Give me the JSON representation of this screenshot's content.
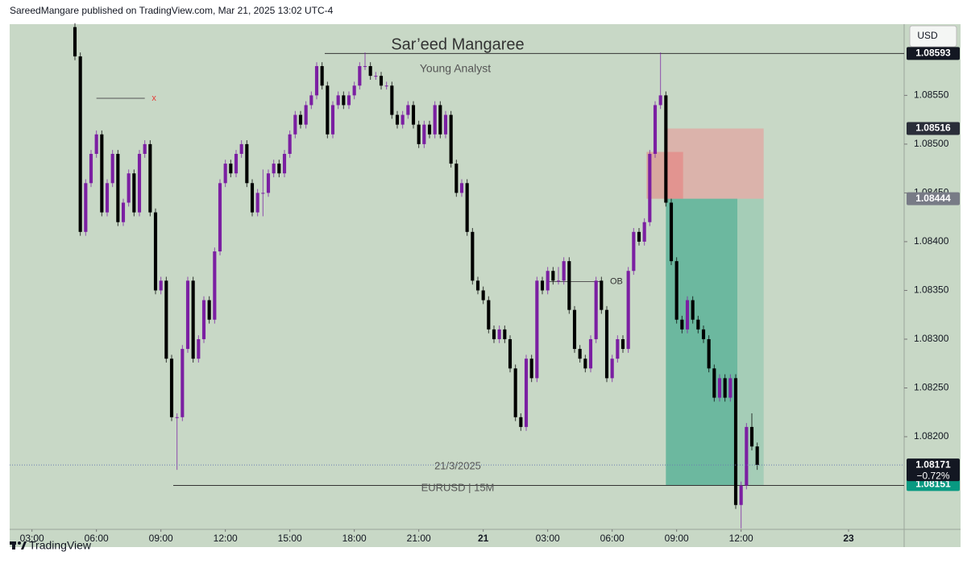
{
  "chart_data": {
    "type": "candlestick",
    "header": "SareedMangare published on TradingView.com, Mar 21, 2025 13:02 UTC-4",
    "currency": "USD",
    "watermark_title": "Sar’eed Mangaree",
    "watermark_subtitle": "Young Analyst",
    "captions": [
      "21/3/2025",
      "EURUSD | 15M"
    ],
    "brand": "TradingView",
    "up_color": "#7b1fa2",
    "down_color": "#000000",
    "ylim": [
      1.08105,
      1.08623
    ],
    "yticks": [
      {
        "value": 1.0855,
        "label": "1.08550"
      },
      {
        "value": 1.085,
        "label": "1.08500"
      },
      {
        "value": 1.0845,
        "label": "1.08450"
      },
      {
        "value": 1.084,
        "label": "1.08400"
      },
      {
        "value": 1.0835,
        "label": "1.08350"
      },
      {
        "value": 1.083,
        "label": "1.08300"
      },
      {
        "value": 1.0825,
        "label": "1.08250"
      },
      {
        "value": 1.082,
        "label": "1.08200"
      }
    ],
    "xlim": [
      -12.15,
      154.35
    ],
    "xticks": [
      {
        "value": -8,
        "label": "03:00"
      },
      {
        "value": 4,
        "label": "06:00"
      },
      {
        "value": 16,
        "label": "09:00"
      },
      {
        "value": 28,
        "label": "12:00"
      },
      {
        "value": 40,
        "label": "15:00"
      },
      {
        "value": 52,
        "label": "18:00"
      },
      {
        "value": 64,
        "label": "21:00"
      },
      {
        "value": 76,
        "label": "21"
      },
      {
        "value": 88,
        "label": "03:00"
      },
      {
        "value": 100,
        "label": "06:00"
      },
      {
        "value": 112,
        "label": "09:00"
      },
      {
        "value": 124,
        "label": "12:00"
      },
      {
        "value": 144,
        "label": "23"
      }
    ],
    "candles": [
      [
        1.0862,
        1.08624,
        1.08586,
        1.0859
      ],
      [
        1.0859,
        1.08594,
        1.08406,
        1.0841
      ],
      [
        1.0841,
        1.08464,
        1.08406,
        1.0846
      ],
      [
        1.0846,
        1.08494,
        1.08456,
        1.0849
      ],
      [
        1.0849,
        1.08514,
        1.08486,
        1.0851
      ],
      [
        1.0851,
        1.08514,
        1.08426,
        1.0843
      ],
      [
        1.0843,
        1.08464,
        1.08426,
        1.0846
      ],
      [
        1.0846,
        1.08494,
        1.08456,
        1.0849
      ],
      [
        1.0849,
        1.08494,
        1.08416,
        1.0842
      ],
      [
        1.0842,
        1.08444,
        1.08416,
        1.0844
      ],
      [
        1.0844,
        1.08474,
        1.08436,
        1.0847
      ],
      [
        1.0847,
        1.08474,
        1.08426,
        1.0843
      ],
      [
        1.0843,
        1.08494,
        1.08426,
        1.0849
      ],
      [
        1.0849,
        1.08504,
        1.08486,
        1.085
      ],
      [
        1.085,
        1.08504,
        1.08426,
        1.0843
      ],
      [
        1.0843,
        1.08434,
        1.08346,
        1.0835
      ],
      [
        1.0835,
        1.08364,
        1.08346,
        1.0836
      ],
      [
        1.0836,
        1.08364,
        1.08276,
        1.0828
      ],
      [
        1.0828,
        1.08284,
        1.08216,
        1.0822
      ],
      [
        1.0822,
        1.08224,
        1.08166,
        1.0822
      ],
      [
        1.0822,
        1.08294,
        1.08216,
        1.0829
      ],
      [
        1.0829,
        1.08364,
        1.08286,
        1.0836
      ],
      [
        1.0836,
        1.08364,
        1.08276,
        1.0828
      ],
      [
        1.0828,
        1.08304,
        1.08276,
        1.083
      ],
      [
        1.083,
        1.08344,
        1.08296,
        1.0834
      ],
      [
        1.0834,
        1.08344,
        1.08316,
        1.0832
      ],
      [
        1.0832,
        1.08394,
        1.08316,
        1.0839
      ],
      [
        1.0839,
        1.08464,
        1.08386,
        1.0846
      ],
      [
        1.0846,
        1.08484,
        1.08456,
        1.0848
      ],
      [
        1.0848,
        1.08484,
        1.08466,
        1.0847
      ],
      [
        1.0847,
        1.08494,
        1.08466,
        1.0849
      ],
      [
        1.0849,
        1.08504,
        1.08486,
        1.085
      ],
      [
        1.085,
        1.08504,
        1.08456,
        1.0846
      ],
      [
        1.0846,
        1.08464,
        1.08426,
        1.0843
      ],
      [
        1.0843,
        1.08454,
        1.08426,
        1.0845
      ],
      [
        1.0845,
        1.08474,
        1.08426,
        1.0845
      ],
      [
        1.0845,
        1.08474,
        1.08446,
        1.0847
      ],
      [
        1.0847,
        1.08484,
        1.08466,
        1.0848
      ],
      [
        1.0848,
        1.08484,
        1.08466,
        1.0847
      ],
      [
        1.0847,
        1.08494,
        1.08466,
        1.0849
      ],
      [
        1.0849,
        1.08514,
        1.08486,
        1.0851
      ],
      [
        1.0851,
        1.08534,
        1.08506,
        1.0853
      ],
      [
        1.0853,
        1.08534,
        1.08516,
        1.0852
      ],
      [
        1.0852,
        1.08544,
        1.08516,
        1.0854
      ],
      [
        1.0854,
        1.08554,
        1.08536,
        1.0855
      ],
      [
        1.0855,
        1.08584,
        1.08546,
        1.0858
      ],
      [
        1.0858,
        1.08584,
        1.08556,
        1.0856
      ],
      [
        1.0856,
        1.08564,
        1.08506,
        1.0851
      ],
      [
        1.0851,
        1.08544,
        1.08506,
        1.0854
      ],
      [
        1.0854,
        1.08554,
        1.08536,
        1.0855
      ],
      [
        1.0855,
        1.08554,
        1.08536,
        1.0854
      ],
      [
        1.0854,
        1.08554,
        1.08536,
        1.0855
      ],
      [
        1.0855,
        1.08564,
        1.08546,
        1.0856
      ],
      [
        1.0856,
        1.08584,
        1.08556,
        1.0858
      ],
      [
        1.0858,
        1.08594,
        1.08576,
        1.0858
      ],
      [
        1.0858,
        1.08584,
        1.08566,
        1.0857
      ],
      [
        1.0857,
        1.08574,
        1.08566,
        1.0857
      ],
      [
        1.0857,
        1.08574,
        1.08556,
        1.0856
      ],
      [
        1.0856,
        1.08564,
        1.08556,
        1.0856
      ],
      [
        1.0856,
        1.08564,
        1.08526,
        1.0853
      ],
      [
        1.0853,
        1.08534,
        1.08516,
        1.0852
      ],
      [
        1.0852,
        1.08534,
        1.08516,
        1.0853
      ],
      [
        1.0853,
        1.08544,
        1.08526,
        1.0854
      ],
      [
        1.0854,
        1.08544,
        1.08516,
        1.0852
      ],
      [
        1.0852,
        1.08524,
        1.08496,
        1.085
      ],
      [
        1.085,
        1.08524,
        1.08496,
        1.0852
      ],
      [
        1.0852,
        1.08524,
        1.08506,
        1.0851
      ],
      [
        1.0851,
        1.08544,
        1.08506,
        1.0854
      ],
      [
        1.0854,
        1.08544,
        1.08506,
        1.0851
      ],
      [
        1.0851,
        1.08534,
        1.08506,
        1.0853
      ],
      [
        1.0853,
        1.08534,
        1.08476,
        1.0848
      ],
      [
        1.0848,
        1.08484,
        1.08446,
        1.0845
      ],
      [
        1.0845,
        1.08464,
        1.08446,
        1.0846
      ],
      [
        1.0846,
        1.08464,
        1.08406,
        1.0841
      ],
      [
        1.0841,
        1.08414,
        1.08356,
        1.0836
      ],
      [
        1.0836,
        1.08364,
        1.08346,
        1.0835
      ],
      [
        1.0835,
        1.08354,
        1.08336,
        1.0834
      ],
      [
        1.0834,
        1.08344,
        1.08306,
        1.0831
      ],
      [
        1.0831,
        1.08314,
        1.08296,
        1.083
      ],
      [
        1.083,
        1.08314,
        1.08296,
        1.0831
      ],
      [
        1.0831,
        1.08314,
        1.08296,
        1.083
      ],
      [
        1.083,
        1.08304,
        1.08266,
        1.0827
      ],
      [
        1.0827,
        1.08274,
        1.08216,
        1.0822
      ],
      [
        1.0822,
        1.08224,
        1.08206,
        1.0821
      ],
      [
        1.0821,
        1.08284,
        1.08206,
        1.0828
      ],
      [
        1.0828,
        1.08284,
        1.08256,
        1.0826
      ],
      [
        1.0826,
        1.08364,
        1.08256,
        1.0836
      ],
      [
        1.0836,
        1.08364,
        1.08346,
        1.0835
      ],
      [
        1.0835,
        1.08374,
        1.08346,
        1.0837
      ],
      [
        1.0837,
        1.08374,
        1.08356,
        1.0836
      ],
      [
        1.0836,
        1.08374,
        1.08356,
        1.0836
      ],
      [
        1.0836,
        1.08384,
        1.08356,
        1.0838
      ],
      [
        1.0838,
        1.08384,
        1.08326,
        1.0833
      ],
      [
        1.0833,
        1.08334,
        1.08286,
        1.0829
      ],
      [
        1.0829,
        1.08294,
        1.08276,
        1.0828
      ],
      [
        1.0828,
        1.08284,
        1.08266,
        1.0827
      ],
      [
        1.0827,
        1.08304,
        1.08266,
        1.083
      ],
      [
        1.083,
        1.08364,
        1.08296,
        1.0836
      ],
      [
        1.0836,
        1.08364,
        1.08326,
        1.0833
      ],
      [
        1.0833,
        1.08334,
        1.08256,
        1.0826
      ],
      [
        1.0826,
        1.08284,
        1.08256,
        1.0828
      ],
      [
        1.0828,
        1.08304,
        1.08276,
        1.083
      ],
      [
        1.083,
        1.08304,
        1.08286,
        1.0829
      ],
      [
        1.0829,
        1.08374,
        1.08286,
        1.0837
      ],
      [
        1.0837,
        1.08414,
        1.08366,
        1.0841
      ],
      [
        1.0841,
        1.08414,
        1.08396,
        1.084
      ],
      [
        1.084,
        1.08424,
        1.08396,
        1.0842
      ],
      [
        1.0842,
        1.08494,
        1.08416,
        1.0849
      ],
      [
        1.0849,
        1.08544,
        1.08486,
        1.0854
      ],
      [
        1.0854,
        1.08594,
        1.08536,
        1.0855
      ],
      [
        1.0855,
        1.08554,
        1.08436,
        1.0844
      ],
      [
        1.0844,
        1.08444,
        1.08376,
        1.0838
      ],
      [
        1.0838,
        1.08384,
        1.08316,
        1.0832
      ],
      [
        1.0832,
        1.08324,
        1.08306,
        1.0831
      ],
      [
        1.0831,
        1.08344,
        1.08306,
        1.0834
      ],
      [
        1.0834,
        1.08344,
        1.08316,
        1.0832
      ],
      [
        1.0832,
        1.08324,
        1.08306,
        1.0831
      ],
      [
        1.0831,
        1.08314,
        1.08296,
        1.083
      ],
      [
        1.083,
        1.08304,
        1.08266,
        1.0827
      ],
      [
        1.0827,
        1.08274,
        1.08236,
        1.0824
      ],
      [
        1.0824,
        1.08264,
        1.08236,
        1.0826
      ],
      [
        1.0826,
        1.08264,
        1.08236,
        1.0824
      ],
      [
        1.0824,
        1.08264,
        1.08236,
        1.0826
      ],
      [
        1.0826,
        1.08264,
        1.08126,
        1.0813
      ],
      [
        1.0813,
        1.08154,
        1.08106,
        1.0815
      ],
      [
        1.0815,
        1.08214,
        1.08146,
        1.0821
      ],
      [
        1.0821,
        1.08224,
        1.08186,
        1.0819
      ],
      [
        1.0819,
        1.08194,
        1.08166,
        1.08171
      ]
    ],
    "zones": [
      {
        "x": [
          110,
          128.2
        ],
        "y": [
          1.08444,
          1.08516
        ],
        "color": "rgba(235,150,150,0.55)"
      },
      {
        "x": [
          110,
          128.2
        ],
        "y": [
          1.0815,
          1.08444
        ],
        "color": "rgba(60,170,140,0.25)"
      },
      {
        "x": [
          110,
          123.3
        ],
        "y": [
          1.0815,
          1.08444
        ],
        "color": "rgba(40,160,130,0.45)"
      },
      {
        "x": [
          106.4,
          113.2
        ],
        "y": [
          1.08444,
          1.08492
        ],
        "color": "rgba(235,110,110,0.45)"
      }
    ],
    "lines": [
      {
        "y": 1.08547,
        "x": [
          4,
          13
        ],
        "color": "#555555"
      },
      {
        "y": 1.08593,
        "x": [
          46.5,
          154.35
        ],
        "color": "#333333"
      },
      {
        "y": 1.0815,
        "x": [
          18.3,
          154.35
        ],
        "color": "#333333"
      },
      {
        "y": 1.08359,
        "x": [
          88,
          98
        ],
        "color": "#555555"
      }
    ],
    "annotations": [
      {
        "text": "x",
        "x": 14,
        "y": 1.08547,
        "color": "#e53935"
      },
      {
        "text": "OB",
        "x": 99.3,
        "y": 1.08359,
        "color": "#333333"
      }
    ],
    "price_tags": [
      {
        "value": 1.08151,
        "label": "1.08151",
        "color": "#089981"
      },
      {
        "value": 1.08593,
        "label": "1.08593",
        "color": "#131722"
      },
      {
        "value": 1.08516,
        "label": "1.08516",
        "color": "#2a2e39"
      },
      {
        "value": 1.08444,
        "label": "1.08444",
        "color": "#787b86"
      },
      {
        "value": 1.08171,
        "label": "1.08171",
        "color": "#131722"
      }
    ],
    "change": "−0.72%"
  }
}
